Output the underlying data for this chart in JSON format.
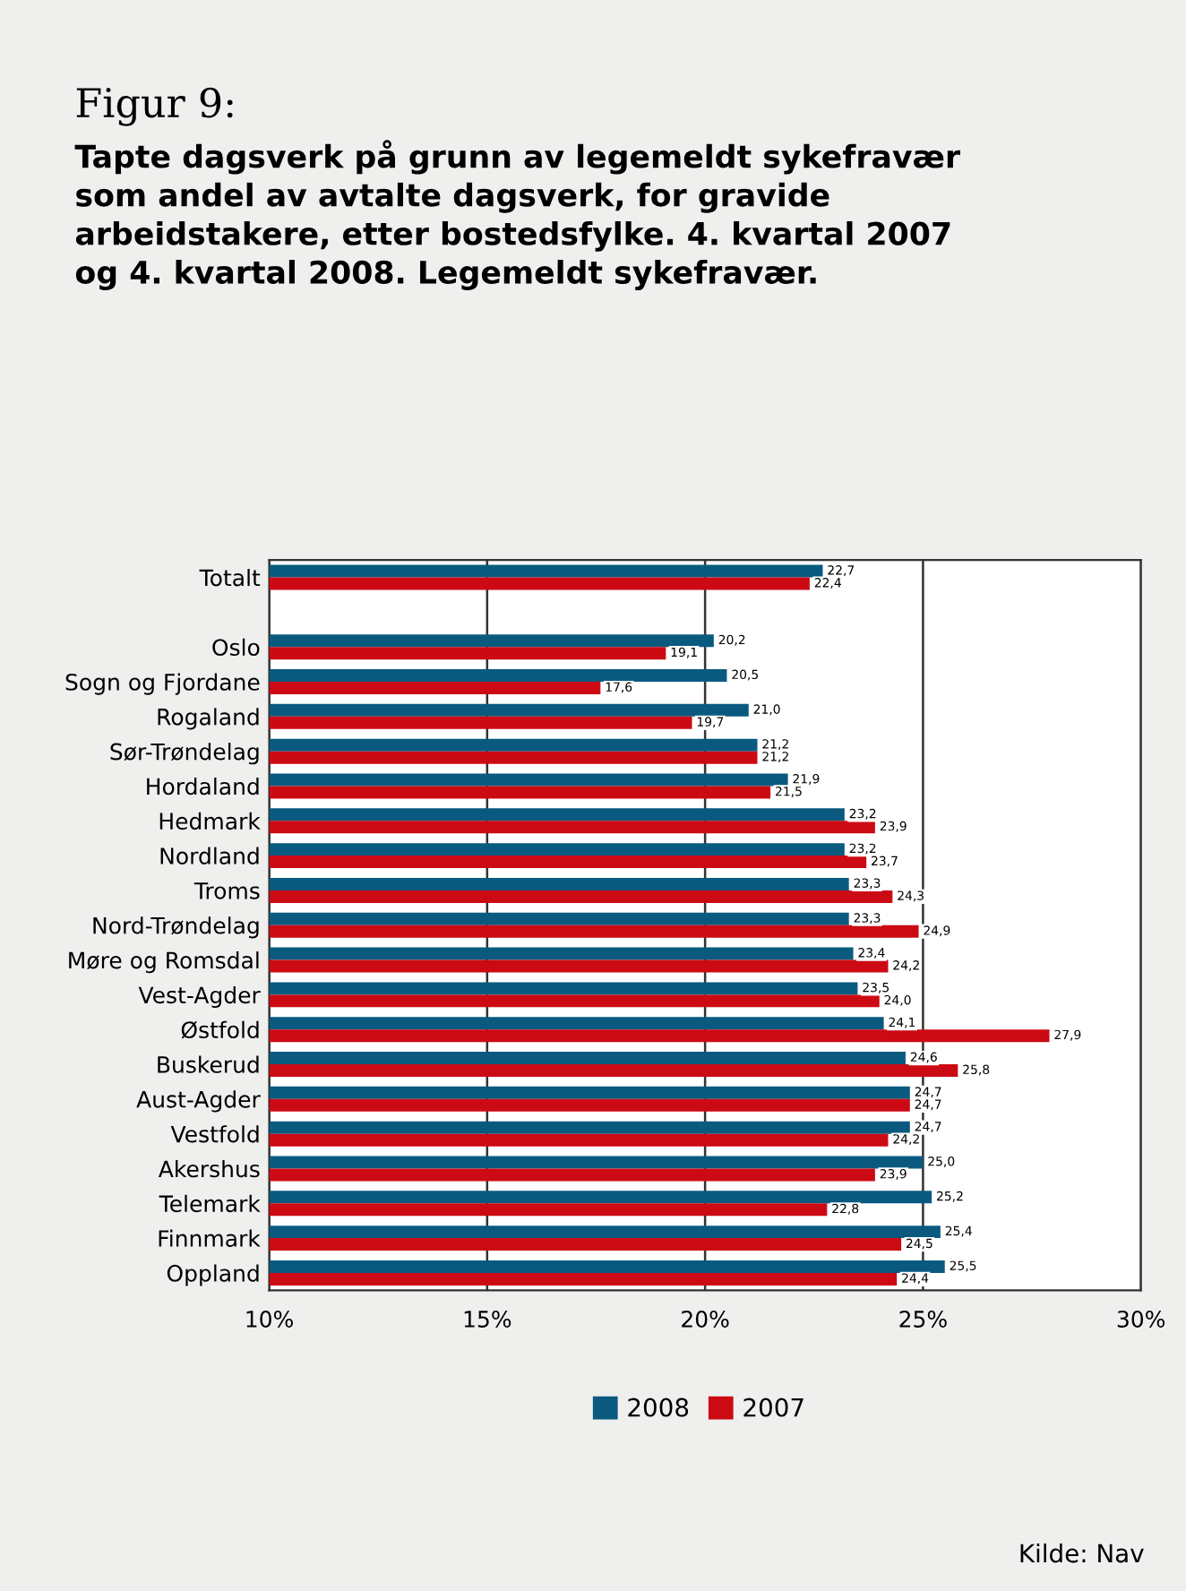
{
  "chart_data": {
    "type": "bar",
    "orientation": "horizontal",
    "title": "Figur 9:",
    "subtitle": "Tapte dagsverk på grunn av legemeldt sykefravær\nsom andel av avtalte dagsverk, for gravide\narbeidstakere, etter bostedsfylke. 4. kvartal 2007\nog 4. kvartal 2008. Legemeldt sykefravær.",
    "categories": [
      "Totalt",
      null,
      "Oslo",
      "Sogn og Fjordane",
      "Rogaland",
      "Sør-Trøndelag",
      "Hordaland",
      "Hedmark",
      "Nordland",
      "Troms",
      "Nord-Trøndelag",
      "Møre og Romsdal",
      "Vest-Agder",
      "Østfold",
      "Buskerud",
      "Aust-Agder",
      "Vestfold",
      "Akershus",
      "Telemark",
      "Finnmark",
      "Oppland"
    ],
    "series": [
      {
        "name": "2008",
        "color": "#0a5a80",
        "values": [
          22.7,
          null,
          20.2,
          20.5,
          21.0,
          21.2,
          21.9,
          23.2,
          23.2,
          23.3,
          23.3,
          23.4,
          23.5,
          24.1,
          24.6,
          24.7,
          24.7,
          25.0,
          25.2,
          25.4,
          25.5
        ],
        "value_labels": [
          "22,7",
          null,
          "20,2",
          "20,5",
          "21,0",
          "21,2",
          "21,9",
          "23,2",
          "23,2",
          "23,3",
          "23,3",
          "23,4",
          "23,5",
          "24,1",
          "24,6",
          "24,7",
          "24,7",
          "25,0",
          "25,2",
          "25,4",
          "25,5"
        ]
      },
      {
        "name": "2007",
        "color": "#cc0a14",
        "values": [
          22.4,
          null,
          19.1,
          17.6,
          19.7,
          21.2,
          21.5,
          23.9,
          23.7,
          24.3,
          24.9,
          24.2,
          24.0,
          27.9,
          25.8,
          24.7,
          24.2,
          23.9,
          22.8,
          24.5,
          24.4
        ],
        "value_labels": [
          "22,4",
          null,
          "19,1",
          "17,6",
          "19,7",
          "21,2",
          "21,5",
          "23,9",
          "23,7",
          "24,3",
          "24,9",
          "24,2",
          "24,0",
          "27,9",
          "25,8",
          "24,7",
          "24,2",
          "23,9",
          "22,8",
          "24,5",
          "24,4"
        ]
      }
    ],
    "xlim": [
      10,
      30
    ],
    "xticks": [
      {
        "value": 10,
        "label": "10%"
      },
      {
        "value": 15,
        "label": "15%"
      },
      {
        "value": 20,
        "label": "20%"
      },
      {
        "value": 25,
        "label": "25%"
      },
      {
        "value": 30,
        "label": "30%"
      }
    ],
    "grid": "x",
    "legend": "bottom",
    "annotations": [
      "Kilde: Nav"
    ]
  }
}
